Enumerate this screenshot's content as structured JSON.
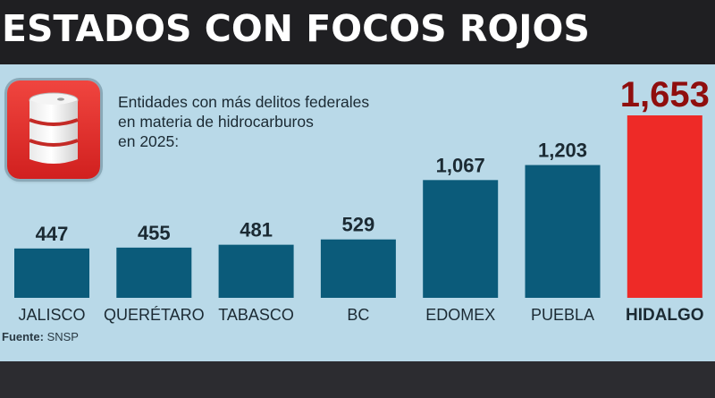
{
  "header": {
    "title": "ESTADOS CON FOCOS ROJOS"
  },
  "subtitle_lines": [
    "Entidades con más delitos federales",
    "en materia de hidrocarburos",
    "en 2025:"
  ],
  "source": {
    "label": "Fuente:",
    "value": "SNSP"
  },
  "icon": "oil-barrel-icon",
  "colors": {
    "bar": "#0b5b7a",
    "highlight_bar": "#ee2a27",
    "highlight_value": "#8f0e0e",
    "panel": "#b9d9e8",
    "header": "#1f1f22"
  },
  "chart_data": {
    "type": "bar",
    "title": "ESTADOS CON FOCOS ROJOS",
    "categories": [
      "JALISCO",
      "QUERÉTARO",
      "TABASCO",
      "BC",
      "EDOMEX",
      "PUEBLA",
      "HIDALGO"
    ],
    "values": [
      447,
      455,
      481,
      529,
      1067,
      1203,
      1653
    ],
    "value_labels": [
      "447",
      "455",
      "481",
      "529",
      "1,067",
      "1,203",
      "1,653"
    ],
    "highlight": "HIDALGO",
    "ylim": [
      0,
      1653
    ],
    "grid": false,
    "legend": "none"
  }
}
